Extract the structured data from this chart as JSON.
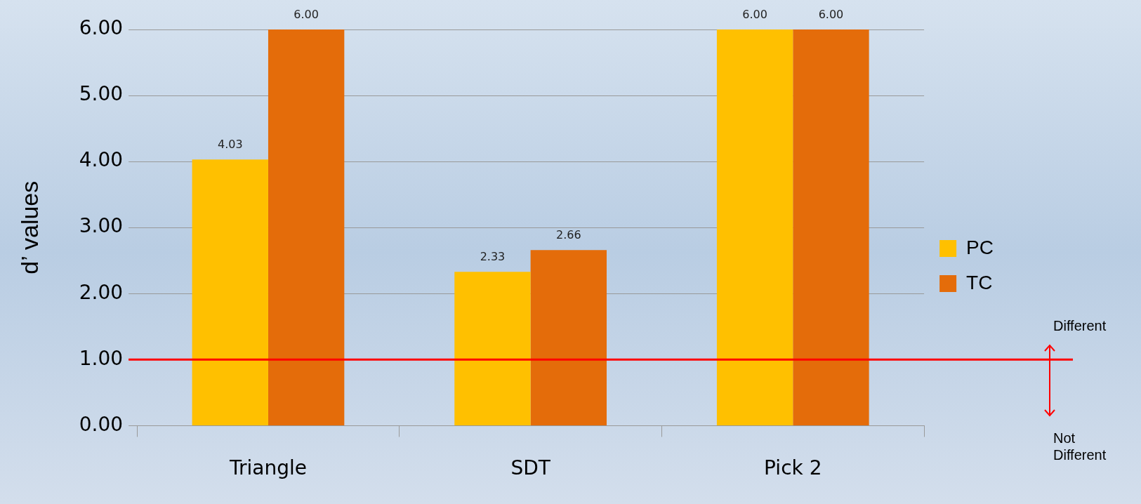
{
  "chart_data": {
    "type": "bar",
    "ylabel": "d’ values",
    "categories": [
      "Triangle",
      "SDT",
      "Pick 2"
    ],
    "series": [
      {
        "name": "PC",
        "color": "#ffc000",
        "values": [
          4.03,
          2.33,
          6.0
        ]
      },
      {
        "name": "TC",
        "color": "#e46c0a",
        "values": [
          6.0,
          2.66,
          6.0
        ]
      }
    ],
    "ylim": [
      0,
      6
    ],
    "yticks": [
      {
        "value": 0,
        "label": "0.00"
      },
      {
        "value": 1,
        "label": "1.00"
      },
      {
        "value": 2,
        "label": "2.00"
      },
      {
        "value": 3,
        "label": "3.00"
      },
      {
        "value": 4,
        "label": "4.00"
      },
      {
        "value": 5,
        "label": "5.00"
      },
      {
        "value": 6,
        "label": "6.00"
      }
    ],
    "value_labels": [
      [
        "4.03",
        "2.33",
        "6.00"
      ],
      [
        "6.00",
        "2.66",
        "6.00"
      ]
    ],
    "ref_lines": [
      {
        "axis": "y",
        "value": 1,
        "color": "#ff0000"
      }
    ],
    "annotations": [
      "Different",
      "Not Different"
    ],
    "grid": "y",
    "legend": "right"
  }
}
